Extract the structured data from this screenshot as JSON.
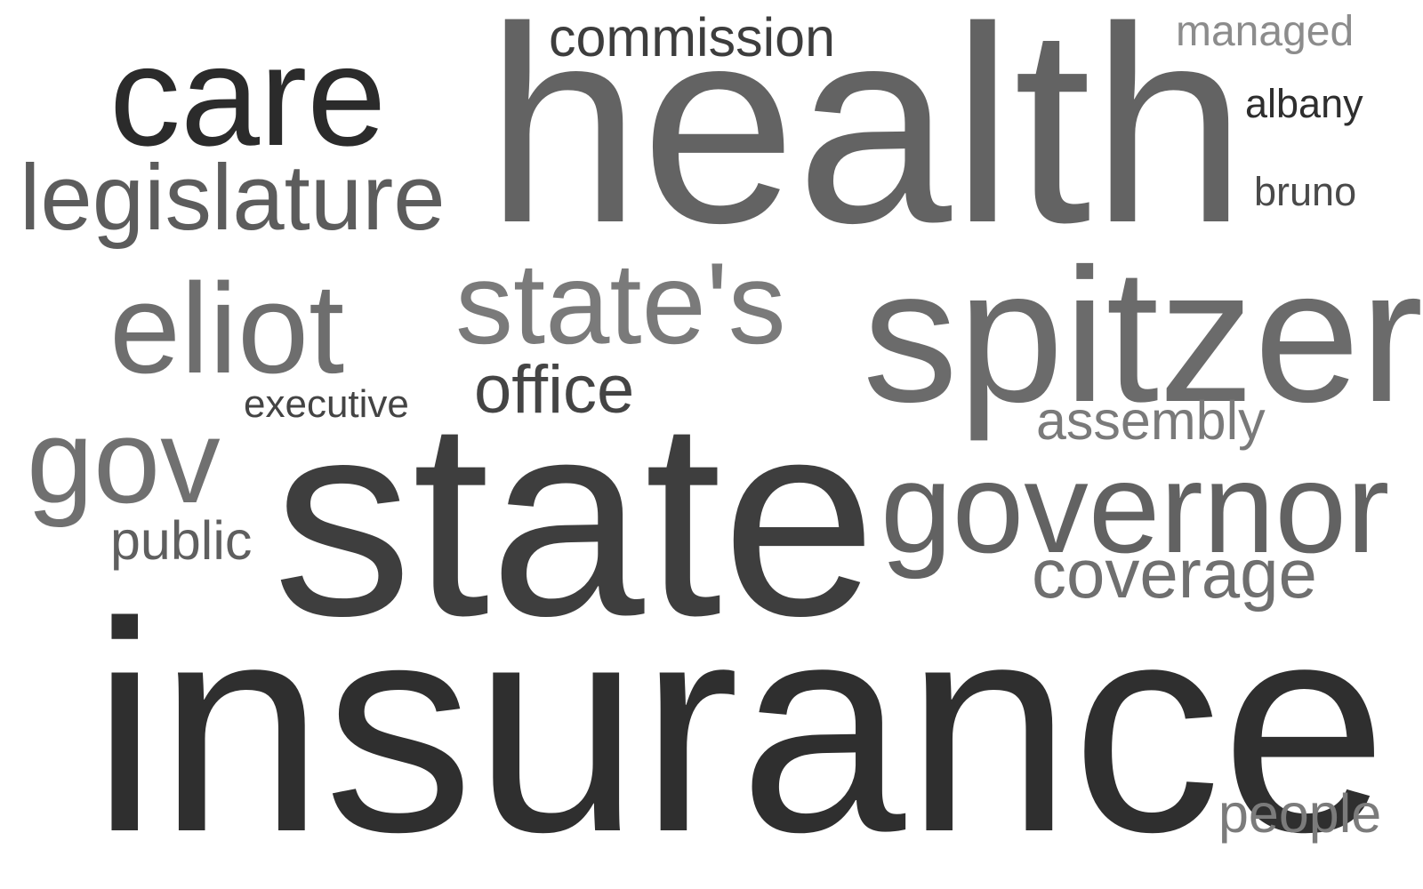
{
  "word_cloud": {
    "words": [
      {
        "key": "health",
        "text": "health",
        "color": "#636363"
      },
      {
        "key": "care",
        "text": "care",
        "color": "#2b2b2b"
      },
      {
        "key": "commission",
        "text": "commission",
        "color": "#3d3d3d"
      },
      {
        "key": "managed",
        "text": "managed",
        "color": "#8c8c8c"
      },
      {
        "key": "albany",
        "text": "albany",
        "color": "#2e2e2e"
      },
      {
        "key": "bruno",
        "text": "bruno",
        "color": "#4a4a4a"
      },
      {
        "key": "legislature",
        "text": "legislature",
        "color": "#5c5c5c"
      },
      {
        "key": "states",
        "text": "state's",
        "color": "#7a7a7a"
      },
      {
        "key": "spitzer",
        "text": "spitzer",
        "color": "#6b6b6b"
      },
      {
        "key": "eliot",
        "text": "eliot",
        "color": "#6e6e6e"
      },
      {
        "key": "office",
        "text": "office",
        "color": "#444444"
      },
      {
        "key": "executive",
        "text": "executive",
        "color": "#444444"
      },
      {
        "key": "assembly",
        "text": "assembly",
        "color": "#7a7a7a"
      },
      {
        "key": "gov",
        "text": "gov",
        "color": "#707070"
      },
      {
        "key": "state",
        "text": "state",
        "color": "#3e3e3e"
      },
      {
        "key": "governor",
        "text": "governor",
        "color": "#626262"
      },
      {
        "key": "public",
        "text": "public",
        "color": "#5f5f5f"
      },
      {
        "key": "coverage",
        "text": "coverage",
        "color": "#6f6f6f"
      },
      {
        "key": "insurance",
        "text": "insurance",
        "color": "#2f2f2f"
      },
      {
        "key": "people",
        "text": "people",
        "color": "#7b7b7b"
      }
    ]
  }
}
